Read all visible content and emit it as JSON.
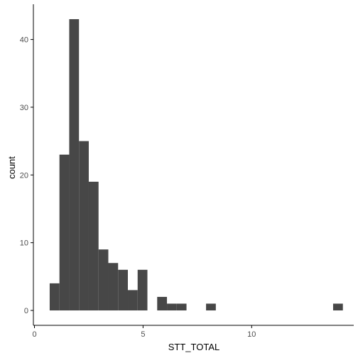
{
  "chart_data": {
    "type": "bar",
    "subtype": "histogram",
    "title": "",
    "xlabel": "STT_TOTAL",
    "ylabel": "count",
    "xlim": [
      -0.05,
      14.7
    ],
    "ylim": [
      -2.2,
      45.2
    ],
    "x_ticks": [
      0,
      5,
      10
    ],
    "y_ticks": [
      0,
      10,
      20,
      30,
      40
    ],
    "grid": false,
    "legend": "none",
    "bar_color": "#474747",
    "bins": [
      {
        "x0": 0.7,
        "x1": 1.15,
        "count": 4
      },
      {
        "x0": 1.15,
        "x1": 1.6,
        "count": 23
      },
      {
        "x0": 1.6,
        "x1": 2.05,
        "count": 43
      },
      {
        "x0": 2.05,
        "x1": 2.5,
        "count": 25
      },
      {
        "x0": 2.5,
        "x1": 2.95,
        "count": 19
      },
      {
        "x0": 2.95,
        "x1": 3.4,
        "count": 9
      },
      {
        "x0": 3.4,
        "x1": 3.85,
        "count": 7
      },
      {
        "x0": 3.85,
        "x1": 4.3,
        "count": 6
      },
      {
        "x0": 4.3,
        "x1": 4.75,
        "count": 3
      },
      {
        "x0": 4.75,
        "x1": 5.2,
        "count": 6
      },
      {
        "x0": 5.65,
        "x1": 6.1,
        "count": 2
      },
      {
        "x0": 6.1,
        "x1": 6.55,
        "count": 1
      },
      {
        "x0": 6.55,
        "x1": 7.0,
        "count": 1
      },
      {
        "x0": 7.9,
        "x1": 8.35,
        "count": 1
      },
      {
        "x0": 13.75,
        "x1": 14.2,
        "count": 1
      }
    ]
  }
}
